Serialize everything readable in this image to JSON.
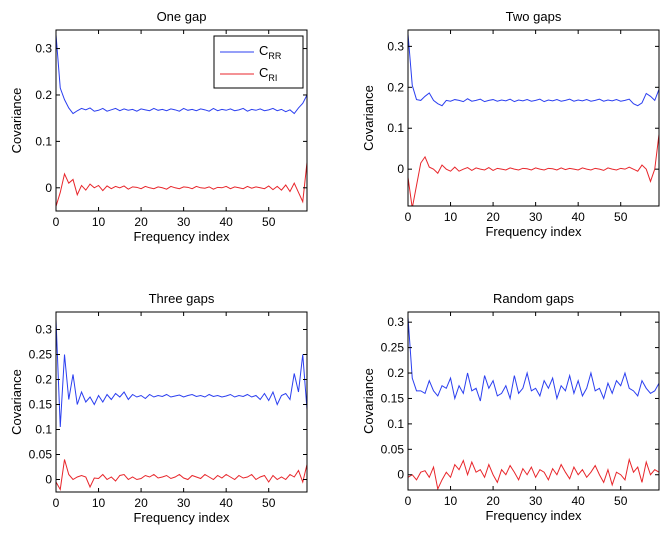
{
  "chart_data": [
    {
      "type": "line",
      "title": "One gap",
      "xlabel": "Frequency index",
      "ylabel": "Covariance",
      "xlim": [
        0,
        59
      ],
      "ylim": [
        -0.05,
        0.34
      ],
      "xticks": [
        0,
        10,
        20,
        30,
        40,
        50
      ],
      "yticks": [
        0,
        0.1,
        0.2,
        0.3
      ],
      "ytick_labels": [
        "0",
        "0.1",
        "0.2",
        "0.3"
      ],
      "legend": {
        "placement": "top-right",
        "entries": [
          {
            "base": "C",
            "sub": "RR",
            "color": "#2b3ff0"
          },
          {
            "base": "C",
            "sub": "RI",
            "color": "#e8262b"
          }
        ]
      },
      "series": [
        {
          "name": "C_RR",
          "color": "#2b3ff0",
          "values": [
            0.33,
            0.215,
            0.19,
            0.172,
            0.16,
            0.166,
            0.171,
            0.168,
            0.172,
            0.165,
            0.167,
            0.171,
            0.165,
            0.168,
            0.171,
            0.166,
            0.17,
            0.167,
            0.169,
            0.165,
            0.17,
            0.168,
            0.166,
            0.171,
            0.167,
            0.169,
            0.166,
            0.17,
            0.168,
            0.165,
            0.171,
            0.167,
            0.169,
            0.166,
            0.17,
            0.168,
            0.165,
            0.171,
            0.166,
            0.169,
            0.167,
            0.17,
            0.166,
            0.168,
            0.171,
            0.165,
            0.169,
            0.167,
            0.17,
            0.166,
            0.168,
            0.171,
            0.166,
            0.169,
            0.164,
            0.168,
            0.16,
            0.172,
            0.182,
            0.2
          ]
        },
        {
          "name": "C_RI",
          "color": "#e8262b",
          "values": [
            -0.04,
            -0.01,
            0.03,
            0.01,
            0.018,
            -0.015,
            0.005,
            -0.005,
            0.008,
            0.0,
            0.005,
            -0.006,
            0.004,
            -0.002,
            0.003,
            0.0,
            0.004,
            -0.003,
            0.002,
            0.001,
            -0.002,
            0.003,
            0.0,
            -0.002,
            0.002,
            0.0,
            -0.003,
            0.003,
            0.0,
            -0.002,
            0.002,
            0.001,
            -0.002,
            0.003,
            0.0,
            -0.001,
            0.002,
            -0.003,
            0.001,
            0.0,
            0.003,
            -0.002,
            0.002,
            0.0,
            -0.002,
            0.003,
            -0.001,
            0.002,
            0.0,
            -0.002,
            0.004,
            -0.004,
            0.003,
            -0.005,
            0.006,
            -0.008,
            0.01,
            -0.01,
            -0.03,
            0.055
          ]
        }
      ]
    },
    {
      "type": "line",
      "title": "Two gaps",
      "xlabel": "Frequency index",
      "ylabel": "Covariance",
      "xlim": [
        0,
        59
      ],
      "ylim": [
        -0.09,
        0.34
      ],
      "xticks": [
        0,
        10,
        20,
        30,
        40,
        50
      ],
      "yticks": [
        0,
        0.1,
        0.2,
        0.3
      ],
      "ytick_labels": [
        "0",
        "0.1",
        "0.2",
        "0.3"
      ],
      "series": [
        {
          "name": "C_RR",
          "color": "#2b3ff0",
          "values": [
            0.33,
            0.205,
            0.17,
            0.168,
            0.178,
            0.186,
            0.168,
            0.16,
            0.155,
            0.168,
            0.166,
            0.17,
            0.168,
            0.165,
            0.172,
            0.166,
            0.168,
            0.171,
            0.165,
            0.168,
            0.17,
            0.166,
            0.169,
            0.167,
            0.171,
            0.165,
            0.169,
            0.167,
            0.17,
            0.166,
            0.168,
            0.171,
            0.165,
            0.169,
            0.167,
            0.17,
            0.166,
            0.168,
            0.171,
            0.166,
            0.169,
            0.167,
            0.17,
            0.166,
            0.168,
            0.171,
            0.166,
            0.169,
            0.167,
            0.17,
            0.166,
            0.168,
            0.171,
            0.16,
            0.155,
            0.162,
            0.185,
            0.178,
            0.168,
            0.195
          ]
        },
        {
          "name": "C_RI",
          "color": "#e8262b",
          "values": [
            -0.02,
            -0.095,
            -0.04,
            0.015,
            0.03,
            0.005,
            0.0,
            -0.01,
            0.01,
            0.0,
            -0.005,
            0.005,
            -0.005,
            0.0,
            0.004,
            -0.003,
            0.003,
            0.0,
            -0.002,
            0.004,
            -0.003,
            0.002,
            0.0,
            -0.002,
            0.003,
            0.0,
            -0.002,
            0.002,
            0.001,
            -0.002,
            0.003,
            0.0,
            -0.002,
            0.002,
            0.001,
            -0.002,
            0.003,
            -0.001,
            0.002,
            0.0,
            -0.002,
            0.003,
            0.0,
            -0.002,
            0.002,
            0.0,
            -0.003,
            0.003,
            0.0,
            -0.002,
            0.002,
            0.0,
            0.005,
            0.0,
            -0.005,
            0.01,
            0.0,
            -0.03,
            0.0,
            0.085
          ]
        }
      ]
    },
    {
      "type": "line",
      "title": "Three gaps",
      "xlabel": "Frequency index",
      "ylabel": "Covariance",
      "xlim": [
        0,
        59
      ],
      "ylim": [
        -0.025,
        0.335
      ],
      "xticks": [
        0,
        10,
        20,
        30,
        40,
        50
      ],
      "yticks": [
        0,
        0.05,
        0.1,
        0.15,
        0.2,
        0.25,
        0.3
      ],
      "ytick_labels": [
        "0",
        "0.05",
        "0.1",
        "0.15",
        "0.2",
        "0.25",
        "0.3"
      ],
      "series": [
        {
          "name": "C_RR",
          "color": "#2b3ff0",
          "values": [
            0.32,
            0.105,
            0.25,
            0.16,
            0.21,
            0.15,
            0.175,
            0.155,
            0.165,
            0.15,
            0.168,
            0.155,
            0.17,
            0.16,
            0.172,
            0.165,
            0.175,
            0.16,
            0.17,
            0.165,
            0.168,
            0.162,
            0.17,
            0.165,
            0.168,
            0.166,
            0.17,
            0.165,
            0.167,
            0.169,
            0.165,
            0.168,
            0.17,
            0.166,
            0.168,
            0.165,
            0.17,
            0.166,
            0.168,
            0.165,
            0.167,
            0.17,
            0.165,
            0.168,
            0.166,
            0.17,
            0.165,
            0.168,
            0.16,
            0.172,
            0.158,
            0.175,
            0.15,
            0.168,
            0.172,
            0.16,
            0.212,
            0.175,
            0.25,
            0.14
          ]
        },
        {
          "name": "C_RI",
          "color": "#e8262b",
          "values": [
            -0.005,
            -0.02,
            0.04,
            0.01,
            0.0,
            0.005,
            0.008,
            0.005,
            -0.015,
            0.003,
            0.002,
            0.01,
            0.0,
            0.005,
            -0.003,
            0.008,
            0.01,
            0.0,
            0.005,
            0.0,
            0.002,
            0.008,
            0.005,
            0.01,
            0.003,
            0.005,
            0.008,
            0.002,
            0.005,
            0.01,
            0.003,
            0.0,
            0.008,
            0.005,
            0.002,
            0.01,
            0.005,
            0.0,
            0.008,
            0.003,
            0.01,
            0.005,
            0.0,
            0.008,
            0.003,
            0.005,
            0.01,
            0.0,
            0.005,
            0.008,
            -0.005,
            0.008,
            0.0,
            0.005,
            0.0,
            0.01,
            0.005,
            0.018,
            -0.005,
            0.03
          ]
        }
      ]
    },
    {
      "type": "line",
      "title": "Random gaps",
      "xlabel": "Frequency index",
      "ylabel": "Covariance",
      "xlim": [
        0,
        59
      ],
      "ylim": [
        -0.03,
        0.32
      ],
      "xticks": [
        0,
        10,
        20,
        30,
        40,
        50
      ],
      "yticks": [
        0,
        0.05,
        0.1,
        0.15,
        0.2,
        0.25,
        0.3
      ],
      "ytick_labels": [
        "0",
        "0.05",
        "0.1",
        "0.15",
        "0.2",
        "0.25",
        "0.3"
      ],
      "series": [
        {
          "name": "C_RR",
          "color": "#2b3ff0",
          "values": [
            0.31,
            0.19,
            0.165,
            0.165,
            0.16,
            0.185,
            0.165,
            0.155,
            0.175,
            0.17,
            0.19,
            0.15,
            0.175,
            0.16,
            0.2,
            0.165,
            0.17,
            0.145,
            0.195,
            0.17,
            0.185,
            0.155,
            0.16,
            0.175,
            0.15,
            0.195,
            0.16,
            0.17,
            0.2,
            0.165,
            0.17,
            0.155,
            0.185,
            0.17,
            0.19,
            0.15,
            0.175,
            0.165,
            0.195,
            0.16,
            0.185,
            0.155,
            0.17,
            0.2,
            0.165,
            0.17,
            0.15,
            0.18,
            0.16,
            0.185,
            0.175,
            0.2,
            0.17,
            0.165,
            0.155,
            0.185,
            0.17,
            0.16,
            0.165,
            0.18
          ]
        },
        {
          "name": "C_RI",
          "color": "#e8262b",
          "values": [
            -0.005,
            0.0,
            -0.01,
            0.005,
            0.008,
            -0.005,
            0.015,
            -0.028,
            -0.01,
            0.005,
            -0.005,
            0.02,
            0.01,
            0.028,
            0.0,
            0.025,
            0.005,
            0.01,
            -0.005,
            0.02,
            0.0,
            -0.015,
            0.01,
            0.0,
            0.018,
            0.005,
            -0.01,
            0.012,
            0.0,
            0.015,
            -0.005,
            0.01,
            0.005,
            -0.01,
            0.012,
            0.0,
            0.02,
            0.005,
            -0.008,
            0.015,
            0.0,
            0.01,
            -0.005,
            0.005,
            0.018,
            0.0,
            -0.015,
            0.01,
            -0.02,
            0.005,
            0.0,
            -0.01,
            0.03,
            0.005,
            0.015,
            -0.015,
            0.025,
            0.0,
            0.01,
            0.005
          ]
        }
      ]
    }
  ]
}
